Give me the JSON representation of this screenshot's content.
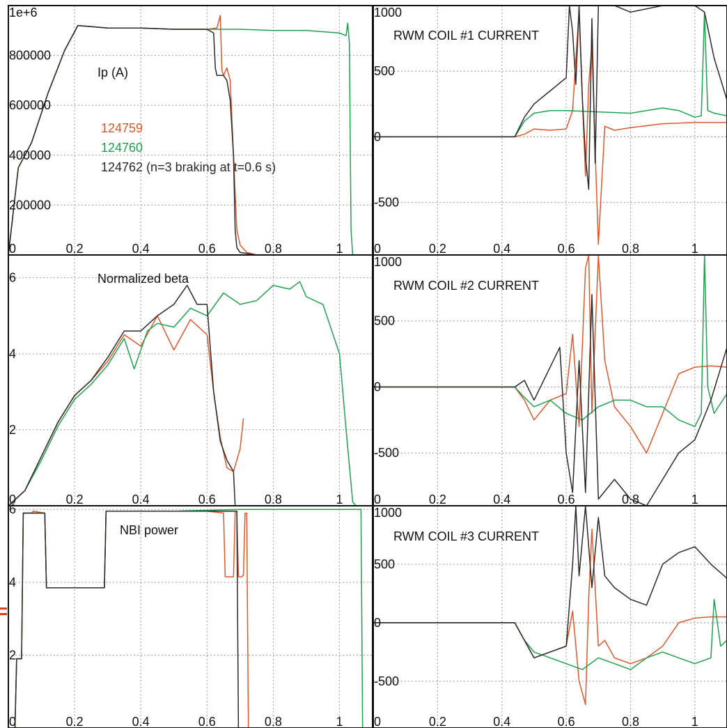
{
  "chart_data": [
    {
      "type": "line",
      "id": "p-ip",
      "text_label": "Ip (A)",
      "legend": [
        {
          "label": "124759",
          "color": "#e0562b"
        },
        {
          "label": "124760",
          "color": "#1fa050"
        },
        {
          "label": "124762 (n=3 braking at t=0.6 s)",
          "color": "#2a2a2a"
        }
      ],
      "xlim": [
        0,
        1.1
      ],
      "ylim": [
        0,
        1000000
      ],
      "xticks": [
        0,
        0.2,
        0.4,
        0.6,
        0.8,
        1
      ],
      "xtick_labels": [
        "0",
        "0.2",
        "0.4",
        "0.6",
        "0.8",
        "1"
      ],
      "yticks": [
        200000,
        400000,
        600000,
        800000,
        1000000
      ],
      "ytick_labels": [
        "200000",
        "400000",
        "600000",
        "800000",
        "1e+6"
      ],
      "grid": true,
      "series": [
        {
          "name": "124759",
          "color": "#e0562b",
          "x": [
            0,
            0.03,
            0.07,
            0.12,
            0.17,
            0.21,
            0.3,
            0.4,
            0.5,
            0.6,
            0.63,
            0.64,
            0.645,
            0.65,
            0.66,
            0.67,
            0.68,
            0.69,
            0.7,
            0.72,
            0.75,
            0.8,
            0.9,
            1.0,
            1.05,
            1.1
          ],
          "y": [
            0,
            350000,
            450000,
            650000,
            820000,
            920000,
            910000,
            910000,
            905000,
            905000,
            910000,
            960000,
            740000,
            720000,
            750000,
            700000,
            400000,
            100000,
            40000,
            10000,
            0,
            0,
            0,
            0,
            0,
            0
          ]
        },
        {
          "name": "124760",
          "color": "#1fa050",
          "x": [
            0,
            0.03,
            0.07,
            0.12,
            0.17,
            0.21,
            0.3,
            0.4,
            0.5,
            0.6,
            0.7,
            0.8,
            0.9,
            1.0,
            1.02,
            1.025,
            1.03,
            1.035,
            1.04,
            1.05,
            1.1
          ],
          "y": [
            0,
            350000,
            450000,
            650000,
            820000,
            920000,
            910000,
            910000,
            905000,
            905000,
            905000,
            900000,
            900000,
            890000,
            880000,
            930000,
            850000,
            100000,
            0,
            0,
            0
          ]
        },
        {
          "name": "124762 (n=3 braking at t=0.6 s)",
          "color": "#2a2a2a",
          "x": [
            0,
            0.03,
            0.07,
            0.12,
            0.17,
            0.21,
            0.3,
            0.4,
            0.5,
            0.6,
            0.62,
            0.625,
            0.63,
            0.65,
            0.66,
            0.67,
            0.68,
            0.685,
            0.69,
            0.7,
            0.75,
            0.8,
            0.9,
            1.0,
            1.1
          ],
          "y": [
            0,
            350000,
            450000,
            650000,
            820000,
            920000,
            910000,
            910000,
            905000,
            905000,
            890000,
            750000,
            720000,
            720000,
            700000,
            620000,
            400000,
            100000,
            30000,
            10000,
            0,
            0,
            0,
            0,
            0
          ]
        }
      ]
    },
    {
      "type": "line",
      "id": "p-c1",
      "text_label": "RWM COIL #1 CURRENT",
      "xlim": [
        0,
        1.1
      ],
      "ylim": [
        -900,
        1000
      ],
      "xticks": [
        0,
        0.2,
        0.4,
        0.6,
        0.8,
        1
      ],
      "xtick_labels": [
        "0",
        "0.2",
        "0.4",
        "0.6",
        "0.8",
        "1"
      ],
      "yticks": [
        -500,
        0,
        500,
        1000
      ],
      "ytick_labels": [
        "-500",
        "0",
        "500",
        "1000"
      ],
      "grid": true,
      "series": [
        {
          "name": "124759",
          "color": "#e0562b",
          "x": [
            0,
            0.44,
            0.47,
            0.5,
            0.55,
            0.6,
            0.62,
            0.63,
            0.64,
            0.65,
            0.66,
            0.67,
            0.68,
            0.69,
            0.7,
            0.72,
            0.75,
            0.8,
            0.9,
            1.0,
            1.1
          ],
          "y": [
            0,
            0,
            20,
            60,
            50,
            60,
            200,
            600,
            950,
            300,
            -300,
            400,
            700,
            -100,
            -820,
            80,
            50,
            70,
            100,
            110,
            110
          ]
        },
        {
          "name": "124760",
          "color": "#1fa050",
          "x": [
            0,
            0.44,
            0.47,
            0.5,
            0.55,
            0.6,
            0.7,
            0.8,
            0.9,
            0.95,
            1.0,
            1.02,
            1.03,
            1.04,
            1.06,
            1.1
          ],
          "y": [
            0,
            0,
            120,
            180,
            200,
            200,
            190,
            180,
            220,
            200,
            150,
            160,
            950,
            200,
            180,
            160
          ]
        },
        {
          "name": "124762 (n=3 braking at t=0.6 s)",
          "color": "#2a2a2a",
          "x": [
            0,
            0.44,
            0.47,
            0.5,
            0.55,
            0.6,
            0.61,
            0.62,
            0.63,
            0.64,
            0.65,
            0.66,
            0.67,
            0.68,
            0.69,
            0.7,
            0.75,
            0.8,
            0.9,
            1.0,
            1.03,
            1.06,
            1.1
          ],
          "y": [
            0,
            0,
            150,
            250,
            350,
            450,
            1000,
            800,
            400,
            1000,
            300,
            -150,
            -400,
            900,
            -200,
            1000,
            1000,
            950,
            1000,
            1000,
            950,
            600,
            280
          ]
        }
      ]
    },
    {
      "type": "line",
      "id": "p-beta",
      "text_label": "Normalized beta",
      "xlim": [
        0,
        1.1
      ],
      "ylim": [
        0,
        6.6
      ],
      "xticks": [
        0,
        0.2,
        0.4,
        0.6,
        0.8,
        1
      ],
      "xtick_labels": [
        "0",
        "0.2",
        "0.4",
        "0.6",
        "0.8",
        "1"
      ],
      "yticks": [
        2,
        4,
        6
      ],
      "ytick_labels": [
        "2",
        "4",
        "6"
      ],
      "grid": true,
      "series": [
        {
          "name": "124759",
          "color": "#e0562b",
          "x": [
            0,
            0.05,
            0.1,
            0.15,
            0.2,
            0.25,
            0.3,
            0.35,
            0.4,
            0.45,
            0.5,
            0.55,
            0.6,
            0.62,
            0.64,
            0.66,
            0.68,
            0.7,
            0.71
          ],
          "y": [
            0,
            0.4,
            1.3,
            2.2,
            2.9,
            3.3,
            3.8,
            4.5,
            4.2,
            5.0,
            4.1,
            4.9,
            4.5,
            3.0,
            1.8,
            1.0,
            0.9,
            1.5,
            2.3
          ]
        },
        {
          "name": "124760",
          "color": "#1fa050",
          "x": [
            0,
            0.05,
            0.1,
            0.15,
            0.2,
            0.25,
            0.3,
            0.35,
            0.38,
            0.42,
            0.45,
            0.5,
            0.55,
            0.6,
            0.65,
            0.7,
            0.75,
            0.8,
            0.85,
            0.88,
            0.9,
            0.95,
            1.0,
            1.02,
            1.04,
            1.05,
            1.1
          ],
          "y": [
            0,
            0.4,
            1.2,
            2.1,
            2.8,
            3.2,
            3.7,
            4.4,
            3.6,
            4.6,
            4.8,
            4.7,
            5.2,
            5.0,
            5.6,
            5.3,
            5.4,
            5.8,
            5.7,
            5.9,
            5.5,
            5.3,
            4.0,
            2.0,
            0.1,
            0.0,
            0.0
          ]
        },
        {
          "name": "124762 (n=3 braking at t=0.6 s)",
          "color": "#2a2a2a",
          "x": [
            0,
            0.05,
            0.1,
            0.15,
            0.2,
            0.25,
            0.3,
            0.35,
            0.4,
            0.45,
            0.5,
            0.54,
            0.57,
            0.6,
            0.62,
            0.64,
            0.66,
            0.68,
            0.685
          ],
          "y": [
            0,
            0.4,
            1.3,
            2.2,
            2.9,
            3.3,
            3.9,
            4.6,
            4.6,
            5.0,
            5.3,
            5.8,
            5.3,
            5.3,
            3.0,
            1.7,
            1.2,
            0.9,
            0.0
          ]
        }
      ]
    },
    {
      "type": "line",
      "id": "p-c2",
      "text_label": "RWM COIL #2 CURRENT",
      "xlim": [
        0,
        1.1
      ],
      "ylim": [
        -900,
        1000
      ],
      "xticks": [
        0,
        0.2,
        0.4,
        0.6,
        0.8,
        1
      ],
      "xtick_labels": [
        "0",
        "0.2",
        "0.4",
        "0.6",
        "0.8",
        "1"
      ],
      "yticks": [
        -500,
        0,
        500,
        1000
      ],
      "ytick_labels": [
        "-500",
        "0",
        "500",
        "1000"
      ],
      "grid": true,
      "series": [
        {
          "name": "124759",
          "color": "#e0562b",
          "x": [
            0,
            0.44,
            0.47,
            0.5,
            0.55,
            0.6,
            0.62,
            0.64,
            0.66,
            0.67,
            0.68,
            0.7,
            0.72,
            0.75,
            0.8,
            0.85,
            0.9,
            0.95,
            1.0,
            1.05,
            1.1
          ],
          "y": [
            0,
            0,
            -100,
            -250,
            -100,
            -50,
            400,
            -300,
            900,
            1000,
            -200,
            1000,
            200,
            -150,
            -300,
            -500,
            -200,
            100,
            150,
            160,
            150
          ]
        },
        {
          "name": "124760",
          "color": "#1fa050",
          "x": [
            0,
            0.44,
            0.47,
            0.5,
            0.55,
            0.6,
            0.65,
            0.7,
            0.75,
            0.8,
            0.85,
            0.9,
            0.95,
            1.0,
            1.02,
            1.03,
            1.04,
            1.06,
            1.1
          ],
          "y": [
            0,
            0,
            -80,
            -150,
            -100,
            -200,
            -250,
            -150,
            -100,
            -100,
            -150,
            -150,
            -250,
            -300,
            -200,
            1000,
            0,
            -200,
            -50
          ]
        },
        {
          "name": "124762 (n=3 braking at t=0.6 s)",
          "color": "#2a2a2a",
          "x": [
            0,
            0.44,
            0.47,
            0.5,
            0.55,
            0.58,
            0.6,
            0.62,
            0.64,
            0.66,
            0.68,
            0.7,
            0.75,
            0.8,
            0.85,
            0.9,
            0.95,
            1.0,
            1.05,
            1.1
          ],
          "y": [
            0,
            0,
            50,
            -100,
            150,
            300,
            -500,
            -800,
            200,
            -800,
            700,
            -850,
            -700,
            -850,
            -900,
            -700,
            -500,
            -400,
            -100,
            300
          ]
        }
      ]
    },
    {
      "type": "line",
      "id": "p-nbi",
      "text_label": "NBI power",
      "xlim": [
        0,
        1.1
      ],
      "ylim": [
        0,
        6.1
      ],
      "xticks": [
        0,
        0.2,
        0.4,
        0.6,
        0.8,
        1
      ],
      "xtick_labels": [
        "0",
        "0.2",
        "0.4",
        "0.6",
        "0.8",
        "1"
      ],
      "yticks": [
        2,
        4,
        6
      ],
      "ytick_labels": [
        "2",
        "4",
        "6"
      ],
      "grid": true,
      "series": [
        {
          "name": "124759",
          "color": "#e0562b",
          "x": [
            0,
            0.02,
            0.025,
            0.04,
            0.045,
            0.07,
            0.075,
            0.11,
            0.115,
            0.29,
            0.295,
            0.6,
            0.65,
            0.655,
            0.68,
            0.685,
            0.69,
            0.695,
            0.7,
            0.705,
            0.71,
            0.715,
            0.72,
            0.725,
            1.1
          ],
          "y": [
            0,
            0,
            1.9,
            1.9,
            5.9,
            5.9,
            5.95,
            5.9,
            3.85,
            3.85,
            5.95,
            5.95,
            5.9,
            4.15,
            4.15,
            5.95,
            5.95,
            4.15,
            4.15,
            4.15,
            4.2,
            5.9,
            5.9,
            0,
            0
          ]
        },
        {
          "name": "124760",
          "color": "#1fa050",
          "x": [
            0,
            0.02,
            0.025,
            0.04,
            0.045,
            0.11,
            0.115,
            0.29,
            0.295,
            0.5,
            0.7,
            0.9,
            1.0,
            1.06,
            1.065,
            1.07,
            1.1
          ],
          "y": [
            0,
            0,
            1.9,
            1.9,
            5.9,
            5.9,
            3.85,
            3.85,
            5.95,
            5.95,
            6.0,
            6.0,
            6.0,
            6.0,
            6.0,
            0,
            0
          ]
        },
        {
          "name": "124762 (n=3 braking at t=0.6 s)",
          "color": "#2a2a2a",
          "x": [
            0,
            0.02,
            0.025,
            0.04,
            0.045,
            0.11,
            0.115,
            0.29,
            0.295,
            0.6,
            0.68,
            0.685,
            0.69,
            0.695,
            1.1
          ],
          "y": [
            0,
            0,
            1.9,
            1.9,
            5.9,
            5.9,
            3.85,
            3.85,
            5.95,
            5.95,
            5.95,
            5.95,
            5.95,
            0,
            0
          ]
        }
      ]
    },
    {
      "type": "line",
      "id": "p-c3",
      "text_label": "RWM COIL #3 CURRENT",
      "xlim": [
        0,
        1.1
      ],
      "ylim": [
        -900,
        1000
      ],
      "xticks": [
        0,
        0.2,
        0.4,
        0.6,
        0.8,
        1
      ],
      "xtick_labels": [
        "0",
        "0.2",
        "0.4",
        "0.6",
        "0.8",
        "1"
      ],
      "yticks": [
        -500,
        0,
        500,
        1000
      ],
      "ytick_labels": [
        "-500",
        "0",
        "500",
        "1000"
      ],
      "grid": true,
      "series": [
        {
          "name": "124759",
          "color": "#e0562b",
          "x": [
            0,
            0.44,
            0.47,
            0.5,
            0.55,
            0.6,
            0.62,
            0.64,
            0.66,
            0.67,
            0.68,
            0.7,
            0.72,
            0.75,
            0.8,
            0.85,
            0.9,
            0.95,
            1.0,
            1.05,
            1.1
          ],
          "y": [
            0,
            0,
            -150,
            -300,
            -250,
            -200,
            100,
            -500,
            -700,
            200,
            800,
            -200,
            -150,
            -300,
            -350,
            -300,
            -200,
            0,
            40,
            50,
            50
          ]
        },
        {
          "name": "124760",
          "color": "#1fa050",
          "x": [
            0,
            0.44,
            0.47,
            0.5,
            0.55,
            0.6,
            0.65,
            0.7,
            0.75,
            0.8,
            0.85,
            0.9,
            0.95,
            1.0,
            1.05,
            1.06,
            1.08,
            1.1
          ],
          "y": [
            0,
            0,
            -150,
            -250,
            -300,
            -350,
            -400,
            -300,
            -350,
            -400,
            -300,
            -250,
            -300,
            -350,
            -300,
            200,
            -200,
            -150
          ]
        },
        {
          "name": "124762 (n=3 braking at t=0.6 s)",
          "color": "#2a2a2a",
          "x": [
            0,
            0.44,
            0.47,
            0.5,
            0.55,
            0.6,
            0.62,
            0.63,
            0.64,
            0.65,
            0.66,
            0.68,
            0.7,
            0.72,
            0.75,
            0.8,
            0.85,
            0.9,
            0.95,
            1.0,
            1.05,
            1.1
          ],
          "y": [
            0,
            0,
            -150,
            -300,
            -250,
            -200,
            500,
            1000,
            400,
            700,
            1000,
            300,
            900,
            400,
            300,
            200,
            150,
            500,
            600,
            650,
            500,
            380
          ]
        }
      ]
    }
  ]
}
